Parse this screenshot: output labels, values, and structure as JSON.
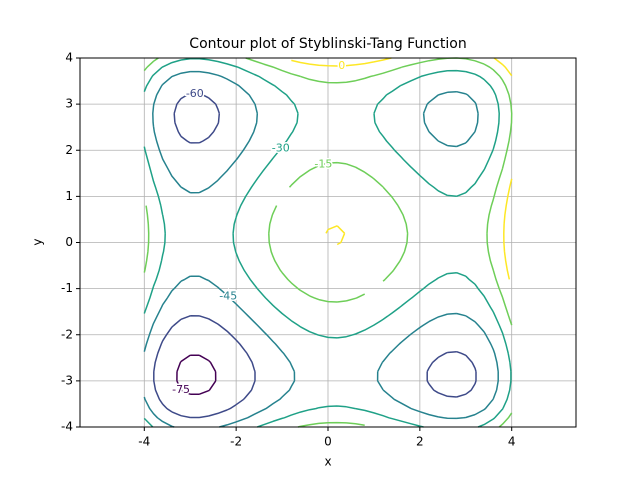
{
  "chart_data": {
    "type": "contour",
    "title": "Contour plot of Styblinski-Tang Function",
    "xlabel": "x",
    "ylabel": "y",
    "levels": [
      -75,
      -60,
      -45,
      -30,
      -15,
      0
    ],
    "colors": [
      "#440154",
      "#3e4a89",
      "#26828e",
      "#1fa187",
      "#6ece58",
      "#fde725"
    ],
    "xlim": [
      -5.4,
      5.4
    ],
    "ylim": [
      -4,
      4
    ],
    "xticks": [
      -4,
      -2,
      0,
      2,
      4
    ],
    "yticks": [
      -4,
      -3,
      -2,
      -1,
      0,
      1,
      2,
      3,
      4
    ],
    "grid": true
  }
}
